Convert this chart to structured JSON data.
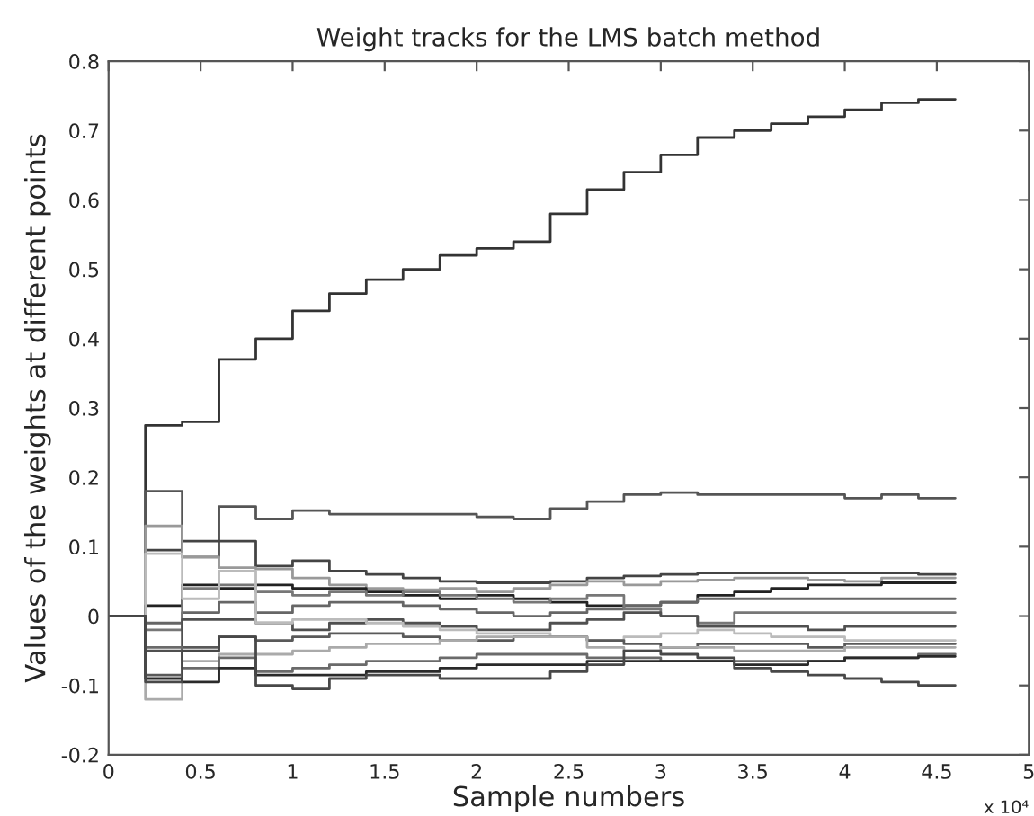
{
  "chart_data": {
    "type": "step",
    "title": "Weight tracks for the LMS batch method",
    "xlabel": "Sample numbers",
    "ylabel": "Values of the weights at different points",
    "annotations": [
      "x 10⁴"
    ],
    "x": [
      0,
      0.2,
      0.4,
      0.6,
      0.8,
      1.0,
      1.2,
      1.4,
      1.6,
      1.8,
      2.0,
      2.2,
      2.4,
      2.6,
      2.8,
      3.0,
      3.2,
      3.4,
      3.6,
      3.8,
      4.0,
      4.2,
      4.4,
      4.6
    ],
    "series": [
      {
        "color": "#333333",
        "values": [
          0,
          0.275,
          0.28,
          0.37,
          0.4,
          0.44,
          0.465,
          0.485,
          0.5,
          0.52,
          0.53,
          0.54,
          0.58,
          0.615,
          0.64,
          0.665,
          0.69,
          0.7,
          0.71,
          0.72,
          0.73,
          0.74,
          0.745,
          0.745
        ]
      },
      {
        "color": "#555555",
        "values": [
          0,
          0.18,
          0.085,
          0.158,
          0.14,
          0.152,
          0.147,
          0.147,
          0.147,
          0.147,
          0.143,
          0.14,
          0.155,
          0.165,
          0.175,
          0.178,
          0.175,
          0.175,
          0.175,
          0.175,
          0.17,
          0.175,
          0.17,
          0.17
        ]
      },
      {
        "color": "#444444",
        "values": [
          0,
          0.095,
          0.108,
          0.108,
          0.072,
          0.08,
          0.065,
          0.06,
          0.055,
          0.05,
          0.048,
          0.048,
          0.05,
          0.055,
          0.058,
          0.06,
          0.062,
          0.062,
          0.062,
          0.062,
          0.062,
          0.062,
          0.06,
          0.06
        ]
      },
      {
        "color": "#999999",
        "values": [
          0,
          0.13,
          0.085,
          0.07,
          0.068,
          0.055,
          0.045,
          0.04,
          0.038,
          0.04,
          0.035,
          0.04,
          0.045,
          0.05,
          0.045,
          0.05,
          0.052,
          0.055,
          0.055,
          0.052,
          0.05,
          0.055,
          0.055,
          0.055
        ]
      },
      {
        "color": "#222222",
        "values": [
          0,
          0.015,
          0.045,
          0.04,
          0.045,
          0.04,
          0.04,
          0.035,
          0.03,
          0.025,
          0.03,
          0.025,
          0.02,
          0.015,
          0.015,
          0.02,
          0.03,
          0.035,
          0.04,
          0.045,
          0.045,
          0.048,
          0.048,
          0.048
        ]
      },
      {
        "color": "#666666",
        "values": [
          0,
          -0.01,
          0.005,
          0.02,
          0.005,
          0.015,
          0.02,
          0.02,
          0.015,
          0.01,
          0.005,
          0.0,
          0.005,
          0.01,
          0.015,
          0.02,
          0.025,
          0.025,
          0.025,
          0.025,
          0.025,
          0.025,
          0.025,
          0.025
        ]
      },
      {
        "color": "#777777",
        "values": [
          0,
          -0.02,
          0.04,
          0.045,
          0.035,
          0.03,
          0.035,
          0.03,
          0.035,
          0.03,
          0.025,
          0.02,
          0.025,
          0.03,
          0.01,
          0.0,
          -0.01,
          0.005,
          0.005,
          0.005,
          0.005,
          0.005,
          0.005,
          0.005
        ]
      },
      {
        "color": "#505050",
        "values": [
          0,
          -0.05,
          -0.005,
          -0.005,
          -0.01,
          -0.02,
          -0.01,
          -0.005,
          -0.01,
          -0.015,
          -0.02,
          -0.02,
          -0.01,
          -0.005,
          0.005,
          0.0,
          -0.015,
          -0.015,
          -0.015,
          -0.02,
          -0.015,
          -0.015,
          -0.015,
          -0.015
        ]
      },
      {
        "color": "#bbbbbb",
        "values": [
          0,
          0.09,
          0.025,
          0.065,
          -0.01,
          -0.005,
          -0.005,
          -0.01,
          -0.015,
          -0.02,
          -0.025,
          -0.025,
          -0.03,
          -0.035,
          -0.03,
          -0.025,
          -0.02,
          -0.025,
          -0.03,
          -0.03,
          -0.035,
          -0.035,
          -0.035,
          -0.035
        ]
      },
      {
        "color": "#595959",
        "values": [
          0,
          -0.085,
          -0.045,
          -0.03,
          -0.035,
          -0.03,
          -0.025,
          -0.025,
          -0.03,
          -0.035,
          -0.035,
          -0.03,
          -0.03,
          -0.035,
          -0.04,
          -0.045,
          -0.04,
          -0.04,
          -0.04,
          -0.045,
          -0.04,
          -0.04,
          -0.04,
          -0.04
        ]
      },
      {
        "color": "#aaaaaa",
        "values": [
          0,
          -0.12,
          -0.065,
          -0.055,
          -0.055,
          -0.05,
          -0.045,
          -0.04,
          -0.04,
          -0.035,
          -0.03,
          -0.03,
          -0.03,
          -0.045,
          -0.05,
          -0.045,
          -0.045,
          -0.05,
          -0.05,
          -0.05,
          -0.045,
          -0.045,
          -0.045,
          -0.045
        ]
      },
      {
        "color": "#6a6a6a",
        "values": [
          0,
          -0.045,
          -0.075,
          -0.06,
          -0.08,
          -0.075,
          -0.07,
          -0.065,
          -0.065,
          -0.06,
          -0.055,
          -0.055,
          -0.055,
          -0.06,
          -0.06,
          -0.065,
          -0.065,
          -0.065,
          -0.065,
          -0.065,
          -0.06,
          -0.06,
          -0.055,
          -0.055
        ]
      },
      {
        "color": "#2a2a2a",
        "values": [
          0,
          -0.09,
          -0.095,
          -0.075,
          -0.085,
          -0.085,
          -0.085,
          -0.08,
          -0.08,
          -0.075,
          -0.07,
          -0.07,
          -0.07,
          -0.065,
          -0.065,
          -0.065,
          -0.065,
          -0.07,
          -0.07,
          -0.065,
          -0.06,
          -0.06,
          -0.058,
          -0.058
        ]
      },
      {
        "color": "#484848",
        "values": [
          0,
          -0.095,
          -0.05,
          -0.03,
          -0.1,
          -0.105,
          -0.09,
          -0.085,
          -0.085,
          -0.09,
          -0.09,
          -0.09,
          -0.08,
          -0.07,
          -0.05,
          -0.055,
          -0.06,
          -0.075,
          -0.08,
          -0.085,
          -0.09,
          -0.095,
          -0.1,
          -0.1
        ]
      }
    ],
    "xlim": [
      0,
      5
    ],
    "xticks": [
      0,
      0.5,
      1,
      1.5,
      2,
      2.5,
      3,
      3.5,
      4,
      4.5,
      5
    ],
    "ylim": [
      -0.2,
      0.8
    ],
    "yticks": [
      -0.2,
      -0.1,
      0,
      0.1,
      0.2,
      0.3,
      0.4,
      0.5,
      0.6,
      0.7,
      0.8
    ],
    "grid": false,
    "legend": false
  }
}
